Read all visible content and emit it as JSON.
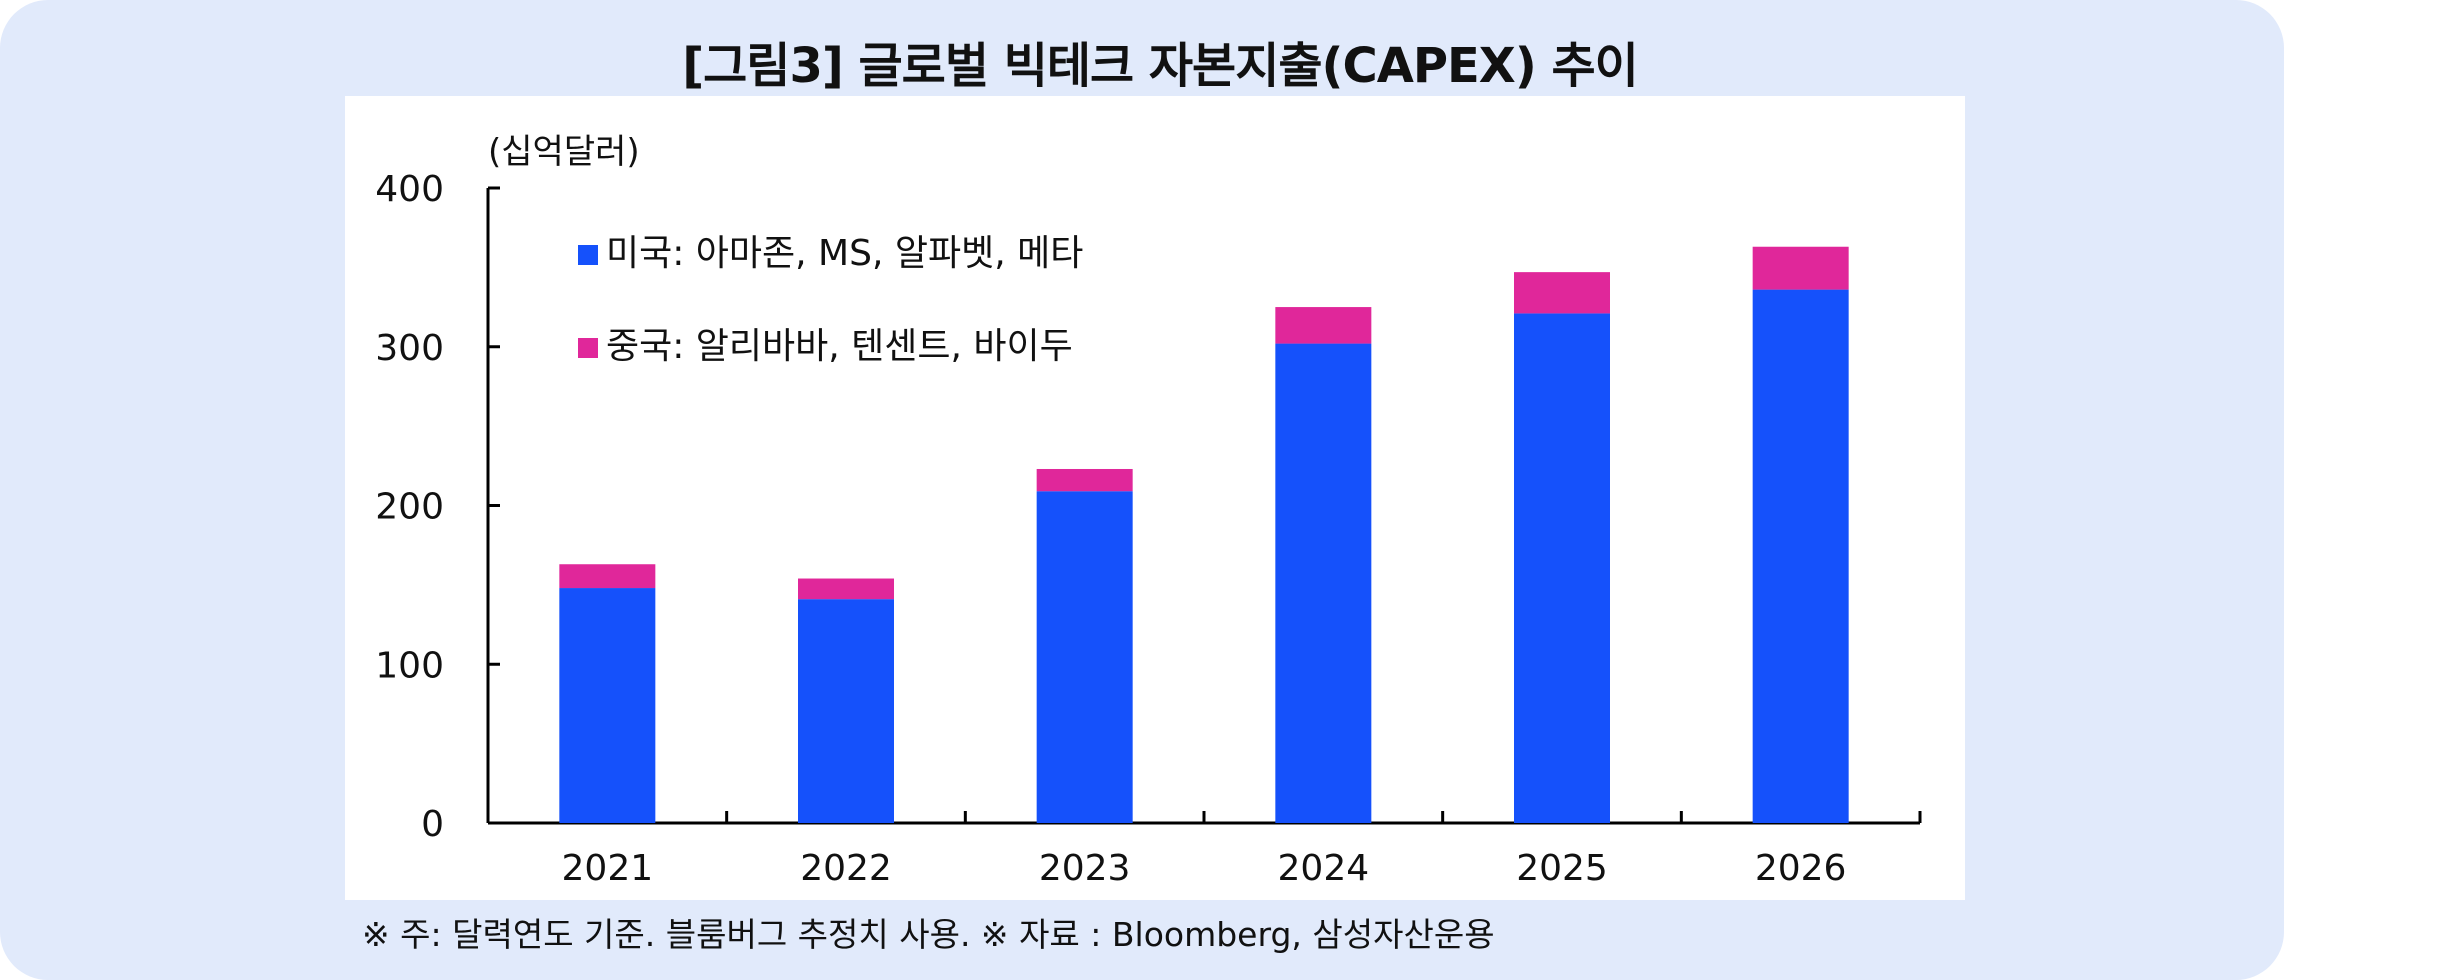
{
  "chart_data": {
    "type": "bar",
    "stacked": true,
    "title": "[그림3] 글로벌 빅테크 자본지출(CAPEX) 추이",
    "ylabel": "(십억달러)",
    "xlabel": "",
    "ylim": [
      0,
      400
    ],
    "yticks": [
      "0",
      "100",
      "200",
      "300",
      "400"
    ],
    "categories": [
      "2021",
      "2022",
      "2023",
      "2024",
      "2025",
      "2026"
    ],
    "series": [
      {
        "name": "미국: 아마존, MS, 알파벳, 메타",
        "color": "#1551fb",
        "values": [
          148,
          141,
          209,
          302,
          321,
          336
        ]
      },
      {
        "name": "중국: 알리바바, 텐센트, 바이두",
        "color": "#e0279a",
        "values": [
          15,
          13,
          14,
          23,
          26,
          27
        ]
      }
    ],
    "legend_position": "top-left",
    "grid": false
  },
  "footnote": "※ 주: 달력연도 기준.  블룸버그 추정치 사용. ※ 자료 : Bloomberg, 삼성자산운용"
}
